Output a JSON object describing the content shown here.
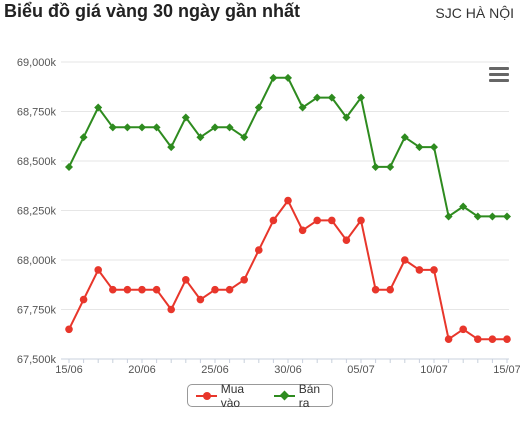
{
  "header": {
    "title": "Biểu đồ giá vàng 30 ngày gần nhất",
    "location": "SJC HÀ NỘI"
  },
  "chart_data": {
    "type": "line",
    "title": "Biểu đồ giá vàng 30 ngày gần nhất",
    "xlabel": "",
    "ylabel": "",
    "ylim": [
      67500,
      69000
    ],
    "yticks": [
      "67,500k",
      "67,750k",
      "68,000k",
      "68,250k",
      "68,500k",
      "68,750k",
      "69,000k"
    ],
    "xticks": [
      "15/06",
      "20/06",
      "25/06",
      "30/06",
      "05/07",
      "10/07",
      "15/07"
    ],
    "grid": true,
    "legend_position": "bottom-center",
    "series": [
      {
        "name": "Mua vào",
        "color": "#e8362b",
        "marker": "circle",
        "values": [
          67650,
          67800,
          67950,
          67850,
          67850,
          67850,
          67850,
          67750,
          67900,
          67800,
          67850,
          67850,
          67900,
          68050,
          68200,
          68300,
          68150,
          68200,
          68200,
          68100,
          68200,
          67850,
          67850,
          68000,
          67950,
          67950,
          67600,
          67650,
          67600,
          67600,
          67600
        ]
      },
      {
        "name": "Bán ra",
        "color": "#2e8b1f",
        "marker": "diamond",
        "values": [
          68470,
          68620,
          68770,
          68670,
          68670,
          68670,
          68670,
          68570,
          68720,
          68620,
          68670,
          68670,
          68620,
          68770,
          68920,
          68920,
          68770,
          68820,
          68820,
          68720,
          68820,
          68470,
          68470,
          68620,
          68570,
          68570,
          68220,
          68270,
          68220,
          68220,
          68220
        ]
      }
    ]
  },
  "legend": {
    "buy_label": "Mua vào",
    "sell_label": "Bán ra"
  }
}
